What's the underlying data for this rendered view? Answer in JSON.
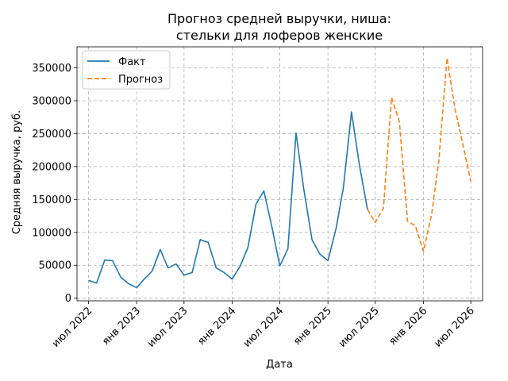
{
  "chart_data": {
    "type": "line",
    "title": [
      "Прогноз средней выручки, ниша:",
      "стельки для лоферов женские"
    ],
    "xlabel": "Дата",
    "ylabel": "Средняя выручка, руб.",
    "ylim": [
      -4000,
      382000
    ],
    "xlim": [
      "2022-05-18",
      "2026-08-15"
    ],
    "yticks": [
      0,
      50000,
      100000,
      150000,
      200000,
      250000,
      300000,
      350000
    ],
    "xticks": [
      {
        "date": "2022-07-01",
        "label": "июл 2022"
      },
      {
        "date": "2023-01-01",
        "label": "янв 2023"
      },
      {
        "date": "2023-07-01",
        "label": "июл 2023"
      },
      {
        "date": "2024-01-01",
        "label": "янв 2024"
      },
      {
        "date": "2024-07-01",
        "label": "июл 2024"
      },
      {
        "date": "2025-01-01",
        "label": "янв 2025"
      },
      {
        "date": "2025-07-01",
        "label": "июл 2025"
      },
      {
        "date": "2026-01-01",
        "label": "янв 2026"
      },
      {
        "date": "2026-07-01",
        "label": "июл 2026"
      }
    ],
    "grid": true,
    "legend_position": "upper-left",
    "series": [
      {
        "name": "Факт",
        "style": "solid",
        "color": "#1f77b4",
        "points": [
          [
            "2022-07-01",
            27000
          ],
          [
            "2022-08-01",
            23000
          ],
          [
            "2022-09-01",
            58000
          ],
          [
            "2022-10-01",
            57000
          ],
          [
            "2022-11-01",
            32000
          ],
          [
            "2022-12-01",
            22000
          ],
          [
            "2023-01-01",
            16000
          ],
          [
            "2023-02-01",
            30000
          ],
          [
            "2023-03-01",
            41000
          ],
          [
            "2023-04-01",
            74000
          ],
          [
            "2023-05-01",
            46000
          ],
          [
            "2023-06-01",
            52000
          ],
          [
            "2023-07-01",
            35000
          ],
          [
            "2023-08-01",
            39000
          ],
          [
            "2023-09-01",
            89000
          ],
          [
            "2023-10-01",
            85000
          ],
          [
            "2023-11-01",
            46000
          ],
          [
            "2023-12-01",
            39000
          ],
          [
            "2024-01-01",
            29000
          ],
          [
            "2024-02-01",
            49000
          ],
          [
            "2024-03-01",
            77000
          ],
          [
            "2024-04-01",
            143000
          ],
          [
            "2024-05-01",
            163000
          ],
          [
            "2024-06-01",
            108000
          ],
          [
            "2024-07-01",
            49000
          ],
          [
            "2024-08-01",
            75000
          ],
          [
            "2024-09-01",
            251000
          ],
          [
            "2024-10-01",
            165000
          ],
          [
            "2024-11-01",
            89000
          ],
          [
            "2024-12-01",
            67000
          ],
          [
            "2025-01-01",
            57000
          ],
          [
            "2025-02-01",
            106000
          ],
          [
            "2025-03-01",
            168000
          ],
          [
            "2025-04-01",
            283000
          ],
          [
            "2025-05-01",
            203000
          ],
          [
            "2025-06-01",
            135000
          ]
        ]
      },
      {
        "name": "Прогноз",
        "style": "dashed",
        "color": "#ff7f0e",
        "points": [
          [
            "2025-06-01",
            135000
          ],
          [
            "2025-07-01",
            115000
          ],
          [
            "2025-08-01",
            137000
          ],
          [
            "2025-09-01",
            305000
          ],
          [
            "2025-10-01",
            268000
          ],
          [
            "2025-11-01",
            117000
          ],
          [
            "2025-12-01",
            110000
          ],
          [
            "2026-01-01",
            71000
          ],
          [
            "2026-02-01",
            127000
          ],
          [
            "2026-03-01",
            210000
          ],
          [
            "2026-04-01",
            365000
          ],
          [
            "2026-05-01",
            289000
          ],
          [
            "2026-06-01",
            233000
          ],
          [
            "2026-07-01",
            178000
          ]
        ]
      }
    ]
  }
}
